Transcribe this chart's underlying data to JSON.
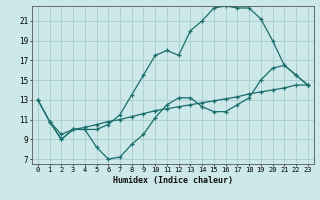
{
  "xlabel": "Humidex (Indice chaleur)",
  "bg_color": "#cce8e8",
  "grid_color": "#aacccc",
  "line_color": "#1a6e6e",
  "xlim": [
    -0.5,
    23.5
  ],
  "ylim": [
    6.5,
    22.5
  ],
  "xticks": [
    0,
    1,
    2,
    3,
    4,
    5,
    6,
    7,
    8,
    9,
    10,
    11,
    12,
    13,
    14,
    15,
    16,
    17,
    18,
    19,
    20,
    21,
    22,
    23
  ],
  "yticks": [
    7,
    9,
    11,
    13,
    15,
    17,
    19,
    21
  ],
  "line1_x": [
    0,
    1,
    2,
    3,
    4,
    5,
    6,
    7,
    8,
    9,
    10,
    11,
    12,
    13,
    14,
    15,
    16,
    17,
    18,
    19,
    20,
    21,
    22,
    23
  ],
  "line1_y": [
    13,
    10.8,
    9.0,
    10.0,
    10.0,
    8.2,
    7.0,
    7.2,
    8.5,
    9.5,
    11.2,
    12.5,
    13.2,
    13.2,
    12.3,
    11.8,
    11.8,
    12.5,
    13.2,
    15.0,
    16.2,
    16.5,
    15.5,
    14.5
  ],
  "line2_x": [
    0,
    1,
    2,
    3,
    4,
    5,
    6,
    7,
    8,
    9,
    10,
    11,
    12,
    13,
    14,
    15,
    16,
    17,
    18,
    19,
    20,
    21,
    22,
    23
  ],
  "line2_y": [
    13,
    10.8,
    9.0,
    10.0,
    10.0,
    10.0,
    10.5,
    11.5,
    13.5,
    15.5,
    17.5,
    18.0,
    17.5,
    20.0,
    21.0,
    22.3,
    22.5,
    22.3,
    22.3,
    21.2,
    19.0,
    16.5,
    15.5,
    14.5
  ],
  "line3_x": [
    1,
    2,
    3,
    4,
    5,
    6,
    7,
    8,
    9,
    10,
    11,
    12,
    13,
    14,
    15,
    16,
    17,
    18,
    19,
    20,
    21,
    22,
    23
  ],
  "line3_y": [
    10.8,
    9.5,
    10.0,
    10.2,
    10.5,
    10.8,
    11.0,
    11.3,
    11.6,
    11.9,
    12.1,
    12.3,
    12.5,
    12.7,
    12.9,
    13.1,
    13.3,
    13.6,
    13.8,
    14.0,
    14.2,
    14.5,
    14.5
  ],
  "marker": "+",
  "markersize": 3,
  "linewidth": 0.9
}
